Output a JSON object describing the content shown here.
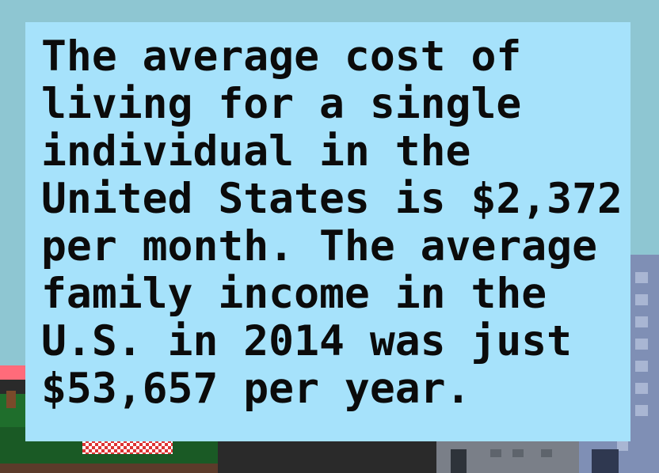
{
  "dialog": {
    "lines": [
      "The average cost of",
      "living for a single",
      "individual in the",
      "United States is $2,372",
      "per month. The average",
      "family income in the",
      "U.S. in 2014 was just",
      "$53,657 per year."
    ]
  },
  "colors": {
    "sky": "#8ec6d2",
    "dialog_background": "#a6e2fb",
    "text": "#0b0b0b",
    "grass": "#1f6e2c",
    "road": "#2a2a2a",
    "building_blue": "#7f8fb5",
    "building_gray": "#7a7f88",
    "shop_awning": "#ff6b7a"
  }
}
